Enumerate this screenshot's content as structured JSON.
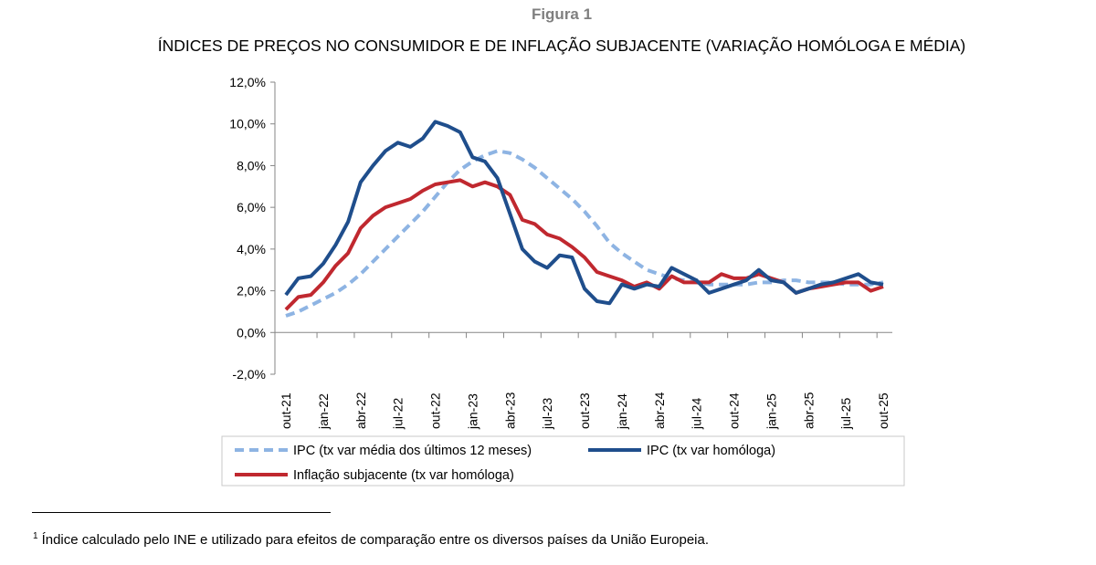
{
  "figure_label": "Figura 1",
  "footnote": {
    "marker": "1",
    "text": "Índice calculado pelo INE e utilizado para efeitos de comparação entre os diversos países da União Europeia."
  },
  "chart_data": {
    "type": "line",
    "title": "ÍNDICES DE PREÇOS NO CONSUMIDOR E DE INFLAÇÃO SUBJACENTE (VARIAÇÃO HOMÓLOGA E MÉDIA)",
    "ylim": [
      -2,
      12
    ],
    "yticks": [
      "-2,0%",
      "0,0%",
      "2,0%",
      "4,0%",
      "6,0%",
      "8,0%",
      "10,0%",
      "12,0%"
    ],
    "ytick_values": [
      -2,
      0,
      2,
      4,
      6,
      8,
      10,
      12
    ],
    "x": [
      "out-21",
      "nov-21",
      "dez-21",
      "jan-22",
      "fev-22",
      "mar-22",
      "abr-22",
      "mai-22",
      "jun-22",
      "jul-22",
      "ago-22",
      "set-22",
      "out-22",
      "nov-22",
      "dez-22",
      "jan-23",
      "fev-23",
      "mar-23",
      "abr-23",
      "mai-23",
      "jun-23",
      "jul-23",
      "ago-23",
      "set-23",
      "out-23",
      "nov-23",
      "dez-23",
      "jan-24",
      "fev-24",
      "mar-24",
      "abr-24",
      "mai-24",
      "jun-24",
      "jul-24",
      "ago-24",
      "set-24",
      "out-24",
      "nov-24",
      "dez-24",
      "jan-25",
      "fev-25",
      "mar-25",
      "abr-25",
      "mai-25",
      "jun-25",
      "jul-25",
      "ago-25",
      "set-25",
      "out-25"
    ],
    "xtick_labels": [
      "out-21",
      "jan-22",
      "abr-22",
      "jul-22",
      "out-22",
      "jan-23",
      "abr-23",
      "jul-23",
      "out-23",
      "jan-24",
      "abr-24",
      "jul-24",
      "out-24",
      "jan-25",
      "abr-25",
      "jul-25",
      "out-25"
    ],
    "legend_position": "bottom",
    "grid": false,
    "series": [
      {
        "name": "IPC (tx var média dos últimos 12 meses)",
        "color": "#8eb4e3",
        "style": "dashed",
        "values": [
          0.8,
          1.0,
          1.3,
          1.6,
          1.9,
          2.3,
          2.8,
          3.4,
          4.0,
          4.6,
          5.2,
          5.8,
          6.5,
          7.2,
          7.8,
          8.2,
          8.5,
          8.7,
          8.6,
          8.3,
          7.9,
          7.4,
          6.9,
          6.4,
          5.8,
          5.1,
          4.3,
          3.8,
          3.4,
          3.0,
          2.8,
          2.6,
          2.5,
          2.4,
          2.3,
          2.3,
          2.3,
          2.3,
          2.4,
          2.4,
          2.5,
          2.5,
          2.4,
          2.4,
          2.4,
          2.3,
          2.3,
          2.3,
          2.4
        ]
      },
      {
        "name": "IPC (tx var homóloga)",
        "color": "#1f4e8c",
        "style": "solid",
        "values": [
          1.8,
          2.6,
          2.7,
          3.3,
          4.2,
          5.3,
          7.2,
          8.0,
          8.7,
          9.1,
          8.9,
          9.3,
          10.1,
          9.9,
          9.6,
          8.4,
          8.2,
          7.4,
          5.7,
          4.0,
          3.4,
          3.1,
          3.7,
          3.6,
          2.1,
          1.5,
          1.4,
          2.3,
          2.1,
          2.3,
          2.2,
          3.1,
          2.8,
          2.5,
          1.9,
          2.1,
          2.3,
          2.5,
          3.0,
          2.5,
          2.4,
          1.9,
          2.1,
          2.3,
          2.4,
          2.6,
          2.8,
          2.4,
          2.3
        ]
      },
      {
        "name": "Inflação subjacente (tx var homóloga)",
        "color": "#c0282f",
        "style": "solid",
        "values": [
          1.1,
          1.7,
          1.8,
          2.4,
          3.2,
          3.8,
          5.0,
          5.6,
          6.0,
          6.2,
          6.4,
          6.8,
          7.1,
          7.2,
          7.3,
          7.0,
          7.2,
          7.0,
          6.6,
          5.4,
          5.2,
          4.7,
          4.5,
          4.1,
          3.6,
          2.9,
          2.7,
          2.5,
          2.2,
          2.4,
          2.1,
          2.7,
          2.4,
          2.4,
          2.4,
          2.8,
          2.6,
          2.6,
          2.8,
          2.6,
          2.4,
          1.9,
          2.1,
          2.2,
          2.3,
          2.4,
          2.4,
          2.0,
          2.2
        ]
      }
    ]
  }
}
